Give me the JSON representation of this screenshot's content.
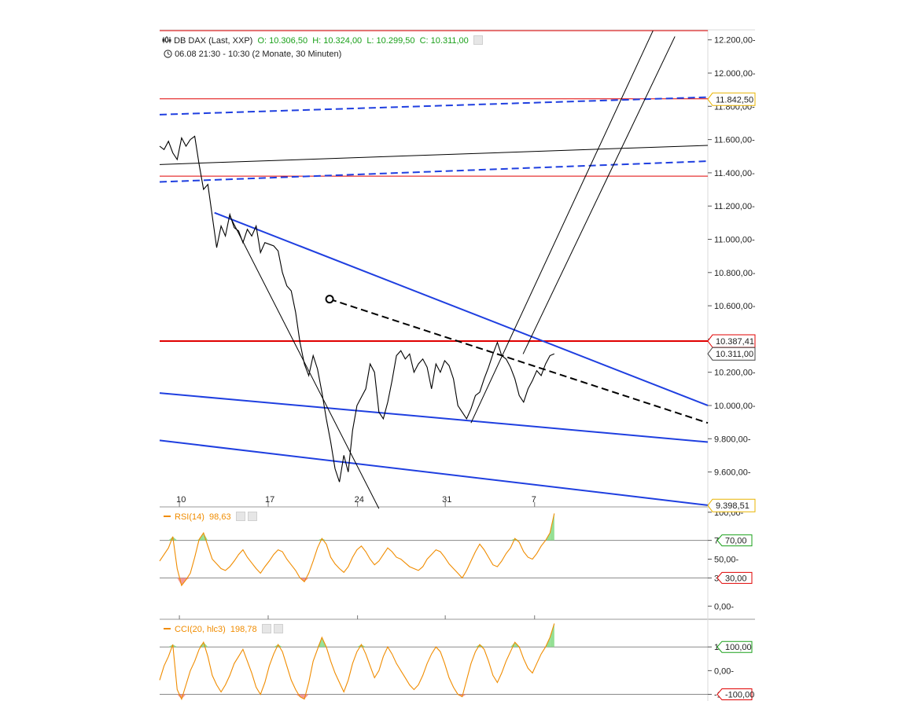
{
  "header": {
    "instrument": "DB DAX (Last, XXP)",
    "open": "O: 10.306,50",
    "high": "H: 10.324,00",
    "low": "L: 10.299,50",
    "close": "C: 10.311,00",
    "period": "06.08 21:30 - 10:30 (2 Monate, 30 Minuten)"
  },
  "rsi": {
    "name": "RSI(14)",
    "value": "98,63",
    "color": "#f08c00"
  },
  "cci": {
    "name": "CCI(20, hlc3)",
    "value": "198,78",
    "color": "#f08c00"
  },
  "colors": {
    "price": "#000000",
    "trend_blue": "#1f3fe0",
    "level_red": "#e00000",
    "indicator": "#f08c00",
    "overbought": "#7ad87a",
    "oversold": "#f08080"
  },
  "chart_data": [
    {
      "type": "line",
      "title": "DB DAX (Last, XXP)",
      "x_ticks": [
        "10",
        "17",
        "24",
        "31",
        "7"
      ],
      "y_ticks": [
        "9.600,00",
        "9.800,00",
        "10.000,00",
        "10.200,00",
        "10.400,00",
        "10.600,00",
        "10.800,00",
        "11.000,00",
        "11.200,00",
        "11.400,00",
        "11.600,00",
        "11.800,00",
        "12.000,00",
        "12.200,00"
      ],
      "ylim": [
        9390,
        12260
      ],
      "price_labels": [
        {
          "text": "11.842,50",
          "value": 11842.5,
          "style": "gold"
        },
        {
          "text": "10.387,41",
          "value": 10387.41,
          "style": "red"
        },
        {
          "text": "10.311,00",
          "value": 10311,
          "style": "gray"
        },
        {
          "text": "9.398,51",
          "value": 9398.51,
          "style": "gold"
        }
      ],
      "series": [
        {
          "values": [
            11560,
            11540,
            11590,
            11520,
            11480,
            11610,
            11560,
            11600,
            11620,
            11450,
            11300,
            11330,
            11140,
            10950,
            11080,
            11020,
            11150,
            11070,
            11050,
            10980,
            11060,
            11020,
            11080,
            10920,
            10980,
            10970,
            10960,
            10930,
            10800,
            10720,
            10690,
            10560,
            10380,
            10250,
            10180,
            10300,
            10220,
            10080,
            9920,
            9780,
            9620,
            9540,
            9700,
            9600,
            9850,
            10000,
            10050,
            10100,
            10250,
            10200,
            9960,
            9920,
            10020,
            10150,
            10300,
            10330,
            10280,
            10310,
            10200,
            10250,
            10280,
            10230,
            10100,
            10250,
            10200,
            10270,
            10240,
            10160,
            10000,
            9960,
            9920,
            9980,
            10060,
            10080,
            10160,
            10230,
            10310,
            10380,
            10300,
            10280,
            10230,
            10160,
            10060,
            10020,
            10100,
            10150,
            10210,
            10180,
            10250,
            10300,
            10311
          ]
        }
      ],
      "lines": [
        {
          "color": "#e00000",
          "style": "solid",
          "width": 1,
          "from": [
            0,
            12255
          ],
          "to": [
            1,
            12255
          ]
        },
        {
          "color": "#e00000",
          "style": "solid",
          "width": 1,
          "from": [
            0,
            11845
          ],
          "to": [
            1,
            11845
          ]
        },
        {
          "color": "#e00000",
          "style": "solid",
          "width": 1,
          "from": [
            0,
            11380
          ],
          "to": [
            1,
            11380
          ]
        },
        {
          "color": "#e00000",
          "style": "solid",
          "width": 2,
          "from": [
            0,
            10387.41
          ],
          "to": [
            1,
            10387.41
          ]
        },
        {
          "color": "#1f3fe0",
          "style": "dashed",
          "width": 2,
          "from": [
            0,
            11750
          ],
          "to": [
            1,
            11855
          ]
        },
        {
          "color": "#1f3fe0",
          "style": "dashed",
          "width": 2,
          "from": [
            0,
            11345
          ],
          "to": [
            1,
            11470
          ]
        },
        {
          "color": "#000000",
          "style": "solid",
          "width": 1,
          "from": [
            0,
            11450
          ],
          "to": [
            1,
            11565
          ]
        },
        {
          "color": "#1f3fe0",
          "style": "solid",
          "width": 2,
          "from": [
            0.1,
            11160
          ],
          "to": [
            1,
            10000
          ]
        },
        {
          "color": "#1f3fe0",
          "style": "solid",
          "width": 2,
          "from": [
            0,
            10075
          ],
          "to": [
            1,
            9780
          ]
        },
        {
          "color": "#1f3fe0",
          "style": "solid",
          "width": 2,
          "from": [
            0,
            9790
          ],
          "to": [
            1,
            9400
          ]
        },
        {
          "color": "#000000",
          "style": "dashed",
          "width": 2,
          "from": [
            0.31,
            10640
          ],
          "to": [
            1,
            9895
          ]
        },
        {
          "color": "#000000",
          "style": "solid",
          "width": 1,
          "from": [
            0.128,
            11140
          ],
          "to": [
            0.4,
            9380
          ]
        },
        {
          "color": "#000000",
          "style": "solid",
          "width": 1,
          "from": [
            0.568,
            9895
          ],
          "to": [
            0.9,
            12255
          ]
        },
        {
          "color": "#000000",
          "style": "solid",
          "width": 1,
          "from": [
            0.663,
            10310
          ],
          "to": [
            0.94,
            12220
          ]
        }
      ]
    },
    {
      "type": "line",
      "title": "RSI(14) 98,63",
      "y_ticks": [
        "0,00",
        "30,00",
        "50,00",
        "70,00",
        "100,00"
      ],
      "ylim": [
        0,
        100
      ],
      "levels": [
        70,
        30
      ],
      "level_labels": [
        "70,00",
        "30,00"
      ],
      "series": [
        {
          "values": [
            48,
            55,
            62,
            74,
            40,
            22,
            28,
            35,
            52,
            71,
            78,
            64,
            50,
            45,
            40,
            38,
            42,
            48,
            55,
            60,
            52,
            46,
            40,
            35,
            42,
            48,
            55,
            60,
            58,
            50,
            44,
            38,
            30,
            26,
            35,
            48,
            62,
            72,
            66,
            52,
            45,
            40,
            36,
            42,
            52,
            60,
            64,
            58,
            50,
            44,
            48,
            55,
            62,
            58,
            52,
            50,
            46,
            42,
            40,
            38,
            42,
            50,
            55,
            60,
            58,
            52,
            45,
            40,
            35,
            30,
            38,
            48,
            58,
            66,
            60,
            52,
            44,
            42,
            48,
            56,
            62,
            72,
            68,
            58,
            52,
            50,
            56,
            64,
            70,
            78,
            98.63
          ]
        }
      ]
    },
    {
      "type": "line",
      "title": "CCI(20, hlc3) 198,78",
      "y_ticks": [
        "-100,00",
        "0,00",
        "100,00"
      ],
      "ylim": [
        -120,
        200
      ],
      "levels": [
        100,
        -100
      ],
      "level_labels": [
        "100,00",
        "-100,00"
      ],
      "series": [
        {
          "values": [
            -40,
            20,
            60,
            110,
            -80,
            -120,
            -60,
            0,
            40,
            90,
            120,
            60,
            -20,
            -60,
            -90,
            -60,
            -20,
            30,
            60,
            90,
            40,
            -10,
            -70,
            -100,
            -50,
            20,
            70,
            110,
            80,
            20,
            -40,
            -80,
            -110,
            -120,
            -50,
            40,
            90,
            140,
            100,
            40,
            -10,
            -50,
            -90,
            -40,
            30,
            80,
            110,
            70,
            20,
            -30,
            0,
            60,
            100,
            70,
            30,
            0,
            -30,
            -60,
            -80,
            -60,
            -20,
            30,
            70,
            100,
            80,
            30,
            -30,
            -70,
            -100,
            -110,
            -40,
            30,
            80,
            110,
            90,
            40,
            -20,
            -50,
            -10,
            40,
            80,
            120,
            100,
            50,
            10,
            -10,
            30,
            70,
            100,
            140,
            198.78
          ]
        }
      ]
    }
  ]
}
